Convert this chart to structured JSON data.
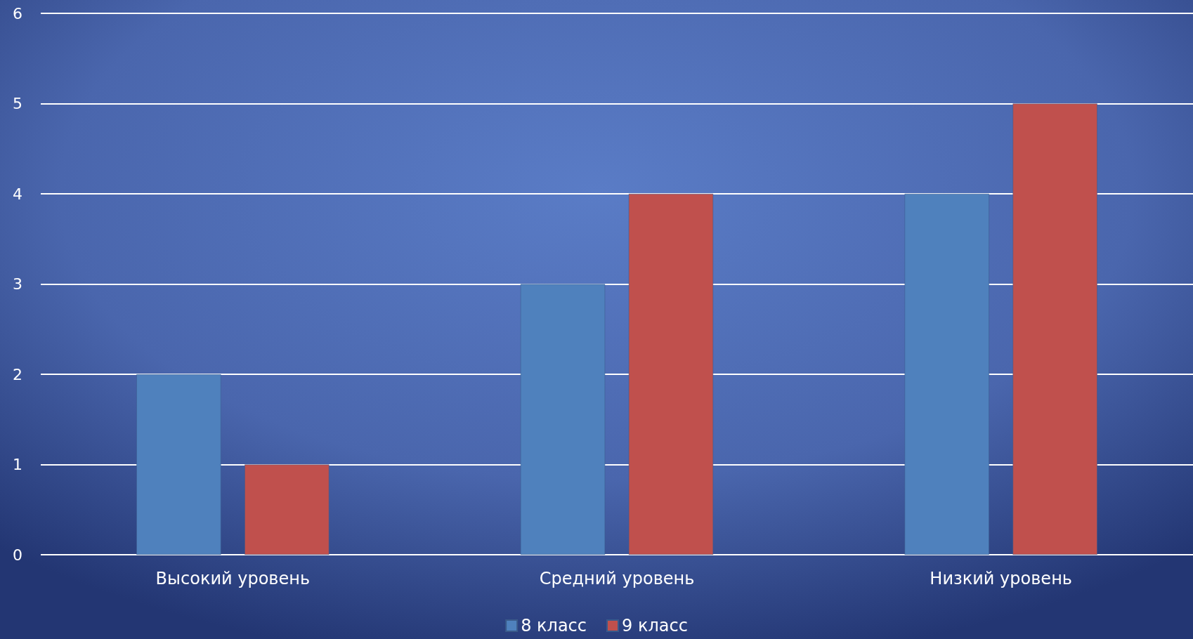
{
  "chart_data": {
    "type": "bar",
    "categories": [
      "Высокий уровень",
      "Средний уровень",
      "Низкий уровень"
    ],
    "series": [
      {
        "name": "8 класс",
        "color": "#4f81bd",
        "values": [
          2,
          3,
          4
        ]
      },
      {
        "name": "9 класс",
        "color": "#c0504d",
        "values": [
          1,
          4,
          5
        ]
      }
    ],
    "ylim": [
      0,
      6
    ],
    "yticks": [
      0,
      1,
      2,
      3,
      4,
      5,
      6
    ],
    "grid": "y",
    "legend": "bottom"
  }
}
